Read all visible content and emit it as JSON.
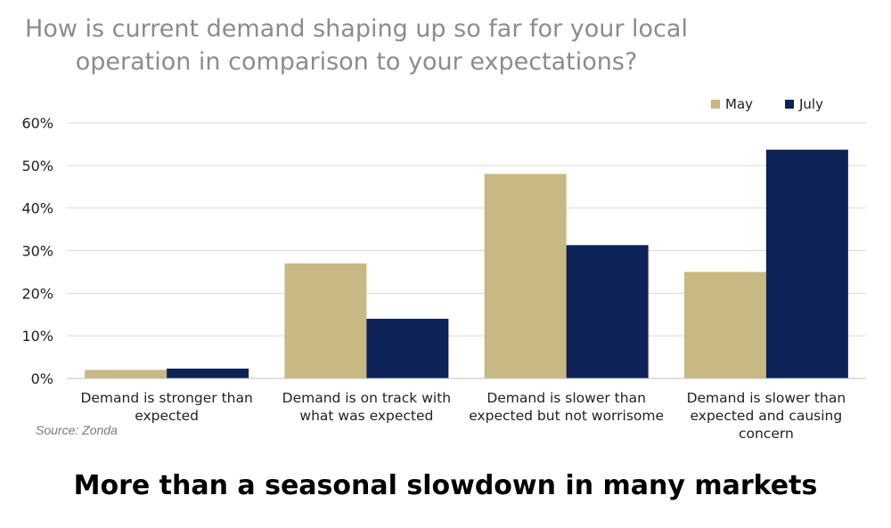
{
  "title_lines": [
    "How is current demand shaping up so far for your local",
    "operation in comparison to your expectations?"
  ],
  "source": "Source: Zonda",
  "headline": "More than a seasonal slowdown in many markets",
  "colors": {
    "may": "#c8b883",
    "july": "#0d2257",
    "grid": "#d9d9d9",
    "axis_text": "#222222"
  },
  "chart_data": {
    "type": "bar",
    "categories": [
      [
        "Demand is stronger than",
        "expected"
      ],
      [
        "Demand is on track with",
        "what was expected"
      ],
      [
        "Demand is slower than",
        "expected but not worrisome"
      ],
      [
        "Demand is slower than",
        "expected and causing",
        "concern"
      ]
    ],
    "series": [
      {
        "name": "May",
        "values": [
          2,
          27,
          48,
          25
        ]
      },
      {
        "name": "July",
        "values": [
          2.3,
          14,
          31.3,
          53.7
        ]
      }
    ],
    "yticks": [
      "0%",
      "10%",
      "20%",
      "30%",
      "40%",
      "50%",
      "60%"
    ],
    "ylim": [
      0,
      60
    ],
    "grid": true,
    "legend_position": "top-right"
  }
}
